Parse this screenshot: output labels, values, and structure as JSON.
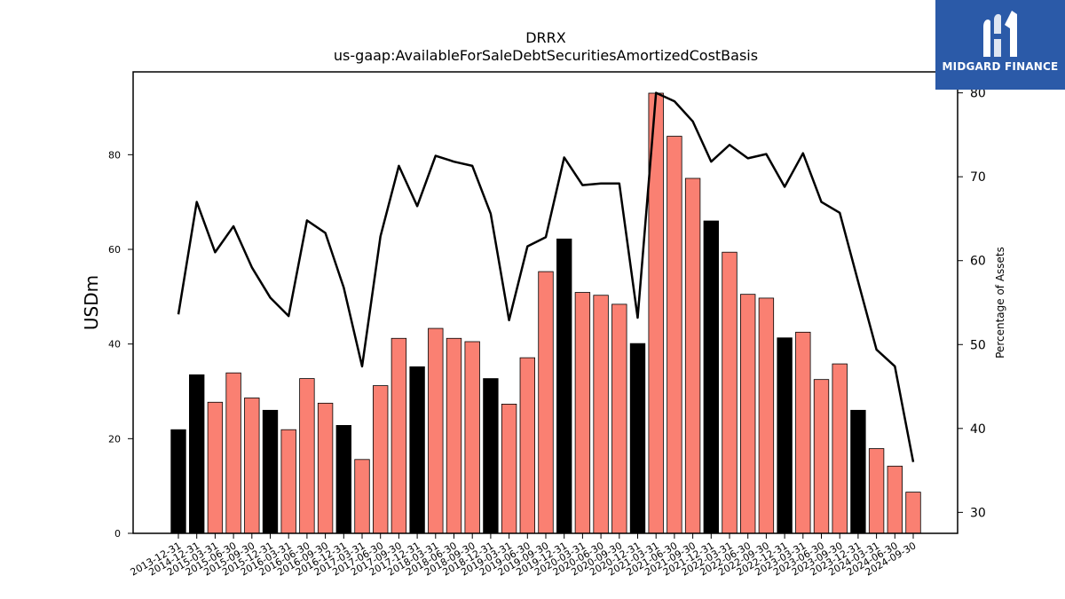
{
  "brand": {
    "name": "MIDGARD FINANCE",
    "bg_color": "#2b5aa8",
    "icon": "midgard-logo-icon"
  },
  "chart_data": {
    "type": "bar",
    "title": "DRRX",
    "subtitle": "us-gaap:AvailableForSaleDebtSecuritiesAmortizedCostBasis",
    "ylabel": "USDm",
    "y2label": "Percentage of Assets",
    "ylim": [
      0,
      97.5
    ],
    "y2lim": [
      27.5,
      82.5
    ],
    "yticks": [
      0,
      20,
      40,
      60,
      80
    ],
    "y2ticks": [
      30,
      40,
      50,
      60,
      70,
      80
    ],
    "colors": {
      "annual": "#000000",
      "quarterly": "#fa8072",
      "line": "#000000"
    },
    "categories": [
      "2013-12-31",
      "2014-12-31",
      "2015-03-31",
      "2015-06-30",
      "2015-09-30",
      "2015-12-31",
      "2016-03-31",
      "2016-06-30",
      "2016-09-30",
      "2016-12-31",
      "2017-03-31",
      "2017-06-30",
      "2017-09-30",
      "2017-12-31",
      "2018-03-31",
      "2018-06-30",
      "2018-09-30",
      "2018-12-31",
      "2019-03-31",
      "2019-06-30",
      "2019-09-30",
      "2019-12-31",
      "2020-03-31",
      "2020-06-30",
      "2020-09-30",
      "2020-12-31",
      "2021-03-31",
      "2021-06-30",
      "2021-09-30",
      "2021-12-31",
      "2022-03-31",
      "2022-06-30",
      "2022-09-30",
      "2022-12-31",
      "2023-03-31",
      "2023-06-30",
      "2023-09-30",
      "2023-12-31",
      "2024-03-31",
      "2024-06-30",
      "2024-09-30"
    ],
    "series": [
      {
        "type": "bar",
        "axis": "left",
        "values": [
          21.9,
          33.5,
          27.7,
          33.9,
          28.6,
          26.0,
          21.9,
          32.7,
          27.5,
          22.8,
          15.6,
          31.2,
          41.2,
          35.2,
          43.3,
          41.2,
          40.5,
          32.7,
          27.3,
          37.1,
          55.3,
          62.2,
          50.9,
          50.3,
          48.4,
          40.1,
          93.0,
          83.9,
          75.0,
          66.0,
          59.4,
          50.5,
          49.7,
          41.3,
          42.5,
          32.5,
          35.8,
          26.0,
          17.9,
          14.2,
          8.7
        ]
      },
      {
        "type": "line",
        "axis": "right",
        "values": [
          53.6,
          67.0,
          61.0,
          64.1,
          59.2,
          55.6,
          53.4,
          64.8,
          63.3,
          56.8,
          47.4,
          62.9,
          71.3,
          66.5,
          72.5,
          71.8,
          71.3,
          65.6,
          52.9,
          61.7,
          62.8,
          72.3,
          69.0,
          69.2,
          69.2,
          53.2,
          80.0,
          79.0,
          76.6,
          71.8,
          73.8,
          72.2,
          72.7,
          68.8,
          72.8,
          67.0,
          65.7,
          57.5,
          49.4,
          47.4,
          36.0
        ]
      }
    ]
  }
}
